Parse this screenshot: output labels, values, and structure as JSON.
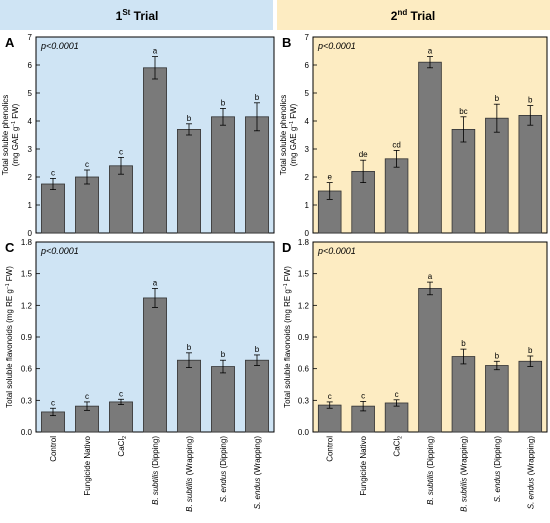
{
  "headers": {
    "trial1": {
      "main": "1",
      "sup": "St",
      "rest": " Trial"
    },
    "trial2": {
      "main": "2",
      "sup": "nd",
      "rest": " Trial"
    }
  },
  "colors": {
    "trial1_bg": "#cfe4f4",
    "trial2_bg": "#fdecc2",
    "bar": "#7a7a7a",
    "bar_stroke": "#333333"
  },
  "categories": [
    {
      "pre": "",
      "it": "",
      "post": "Control"
    },
    {
      "pre": "",
      "it": "",
      "post": "Fungicide Nativo"
    },
    {
      "pre": "CaCl",
      "it": "",
      "post": "",
      "sub": "2"
    },
    {
      "pre": "",
      "it": "B. subtilis",
      "post": " (Dipping)"
    },
    {
      "pre": "",
      "it": "B. subtilis",
      "post": " (Wrapping)"
    },
    {
      "pre": "",
      "it": "S. endus",
      "post": " (Dipping)"
    },
    {
      "pre": "",
      "it": "S. endus",
      "post": " (Wrapping)"
    }
  ],
  "chart_data": [
    {
      "panel": "A",
      "type": "bar",
      "trial": "1st Trial",
      "p_text": "p<0.0001",
      "ylabel_lines": [
        "Total soluble phenolics",
        "(mg GAE g",
        "−1",
        " FW)"
      ],
      "ylim": [
        0,
        7
      ],
      "yticks": [
        0,
        1,
        2,
        3,
        4,
        5,
        6,
        7
      ],
      "tick_decimals": 0,
      "values": [
        1.75,
        2.0,
        2.4,
        5.9,
        3.7,
        4.15,
        4.15
      ],
      "errors": [
        0.2,
        0.25,
        0.3,
        0.4,
        0.2,
        0.3,
        0.5
      ],
      "letters": [
        "c",
        "c",
        "c",
        "a",
        "b",
        "b",
        "b"
      ]
    },
    {
      "panel": "B",
      "type": "bar",
      "trial": "2nd Trial",
      "p_text": "p<0.0001",
      "ylabel_lines": [
        "Total soluble phenolics",
        "(mg GAE g",
        "−1",
        " FW)"
      ],
      "ylim": [
        0,
        7
      ],
      "yticks": [
        0,
        1,
        2,
        3,
        4,
        5,
        6,
        7
      ],
      "tick_decimals": 0,
      "values": [
        1.5,
        2.2,
        2.65,
        6.1,
        3.7,
        4.1,
        4.2
      ],
      "errors": [
        0.3,
        0.4,
        0.3,
        0.2,
        0.45,
        0.5,
        0.35
      ],
      "letters": [
        "e",
        "de",
        "cd",
        "a",
        "bc",
        "b",
        "b"
      ]
    },
    {
      "panel": "C",
      "type": "bar",
      "trial": "1st Trial",
      "p_text": "p<0.0001",
      "ylabel_lines": [
        "Total soluble flavonoids (mg RE g",
        "−1",
        " FW)"
      ],
      "ylim": [
        0,
        1.8
      ],
      "yticks": [
        0,
        0.3,
        0.6,
        0.9,
        1.2,
        1.5,
        1.8
      ],
      "tick_decimals": 1,
      "values": [
        0.19,
        0.245,
        0.285,
        1.27,
        0.68,
        0.62,
        0.68
      ],
      "errors": [
        0.035,
        0.04,
        0.025,
        0.09,
        0.07,
        0.06,
        0.05
      ],
      "letters": [
        "c",
        "c",
        "c",
        "a",
        "b",
        "b",
        "b"
      ]
    },
    {
      "panel": "D",
      "type": "bar",
      "trial": "2nd Trial",
      "p_text": "p<0.0001",
      "ylabel_lines": [
        "Total soluble flavonoids (mg RE g",
        "−1",
        " FW)"
      ],
      "ylim": [
        0,
        1.8
      ],
      "yticks": [
        0,
        0.3,
        0.6,
        0.9,
        1.2,
        1.5,
        1.8
      ],
      "tick_decimals": 1,
      "values": [
        0.255,
        0.245,
        0.275,
        1.36,
        0.715,
        0.63,
        0.67
      ],
      "errors": [
        0.03,
        0.045,
        0.03,
        0.06,
        0.07,
        0.04,
        0.05
      ],
      "letters": [
        "c",
        "c",
        "c",
        "a",
        "b",
        "b",
        "b"
      ]
    }
  ]
}
